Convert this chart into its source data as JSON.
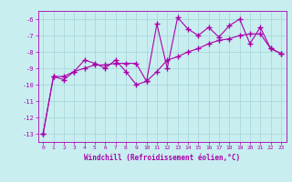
{
  "xlabel": "Windchill (Refroidissement éolien,°C)",
  "ylabel": "",
  "bg_color": "#c8eef0",
  "grid_color": "#aad8dc",
  "line_color": "#aa00aa",
  "line1_x": [
    0,
    1,
    2,
    3,
    4,
    5,
    6,
    7,
    8,
    9,
    10,
    11,
    12,
    13,
    14,
    15,
    16,
    17,
    18,
    19,
    20,
    21,
    22,
    23
  ],
  "line1_y": [
    -13.0,
    -9.5,
    -9.7,
    -9.2,
    -8.5,
    -8.7,
    -9.0,
    -8.5,
    -9.2,
    -10.0,
    -9.8,
    -6.3,
    -9.0,
    -5.9,
    -6.6,
    -7.0,
    -6.5,
    -7.1,
    -6.4,
    -6.0,
    -7.5,
    -6.5,
    -7.8,
    -8.1
  ],
  "line2_x": [
    0,
    1,
    2,
    3,
    4,
    5,
    6,
    7,
    8,
    9,
    10,
    11,
    12,
    13,
    14,
    15,
    16,
    17,
    18,
    19,
    20,
    21,
    22,
    23
  ],
  "line2_y": [
    -13.0,
    -9.5,
    -9.5,
    -9.2,
    -9.0,
    -8.8,
    -8.8,
    -8.7,
    -8.7,
    -8.7,
    -9.8,
    -9.2,
    -8.5,
    -8.3,
    -8.0,
    -7.8,
    -7.5,
    -7.3,
    -7.2,
    -7.0,
    -6.9,
    -6.9,
    -7.8,
    -8.1
  ],
  "xlim": [
    -0.5,
    23.5
  ],
  "ylim": [
    -13.5,
    -5.5
  ],
  "yticks": [
    -13,
    -12,
    -11,
    -10,
    -9,
    -8,
    -7,
    -6
  ],
  "xticks": [
    0,
    1,
    2,
    3,
    4,
    5,
    6,
    7,
    8,
    9,
    10,
    11,
    12,
    13,
    14,
    15,
    16,
    17,
    18,
    19,
    20,
    21,
    22,
    23
  ],
  "marker": "+",
  "markersize": 4,
  "linewidth": 0.8
}
